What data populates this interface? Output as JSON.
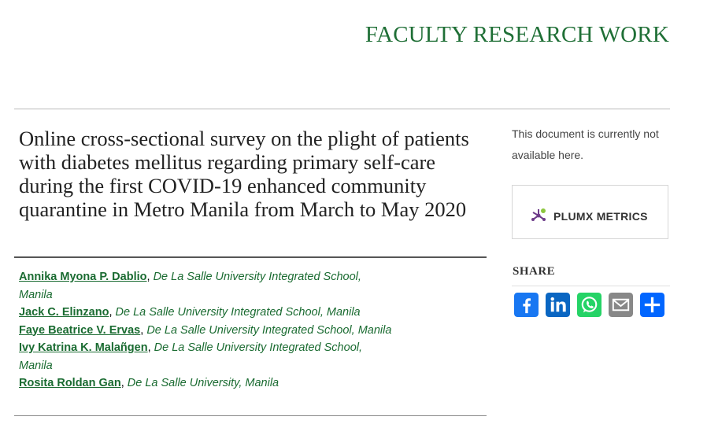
{
  "header": {
    "series_title": "FACULTY RESEARCH WORK"
  },
  "article": {
    "title": "Online cross-sectional survey on the plight of patients with diabetes mellitus regarding primary self-care during the first COVID-19 enhanced community quarantine in Metro Manila from March to May 2020",
    "authors": [
      {
        "name": "Annika Myona P. Dablio",
        "affiliation": "De La Salle University Integrated School, Manila"
      },
      {
        "name": "Jack C. Elinzano",
        "affiliation": "De La Salle University Integrated School, Manila"
      },
      {
        "name": "Faye Beatrice V. Ervas",
        "affiliation": "De La Salle University Integrated School, Manila"
      },
      {
        "name": "Ivy Katrina K. Malañgen",
        "affiliation": "De La Salle University Integrated School, Manila"
      },
      {
        "name": "Rosita Roldan Gan",
        "affiliation": "De La Salle University, Manila"
      }
    ]
  },
  "sidebar": {
    "availability_text": "This document is currently not available here.",
    "plumx_label": "PLUMX METRICS",
    "share_heading": "SHARE",
    "share_buttons": [
      {
        "icon": "facebook-icon",
        "color": "#1877f2"
      },
      {
        "icon": "linkedin-icon",
        "color": "#0a66c2"
      },
      {
        "icon": "whatsapp-icon",
        "color": "#25d366"
      },
      {
        "icon": "email-icon",
        "color": "#888888"
      },
      {
        "icon": "share-icon",
        "color": "#0166ff"
      }
    ]
  },
  "colors": {
    "accent_green": "#1f6f36",
    "plumx_purple": "#6e3c8a",
    "plumx_green": "#8dc63f"
  }
}
